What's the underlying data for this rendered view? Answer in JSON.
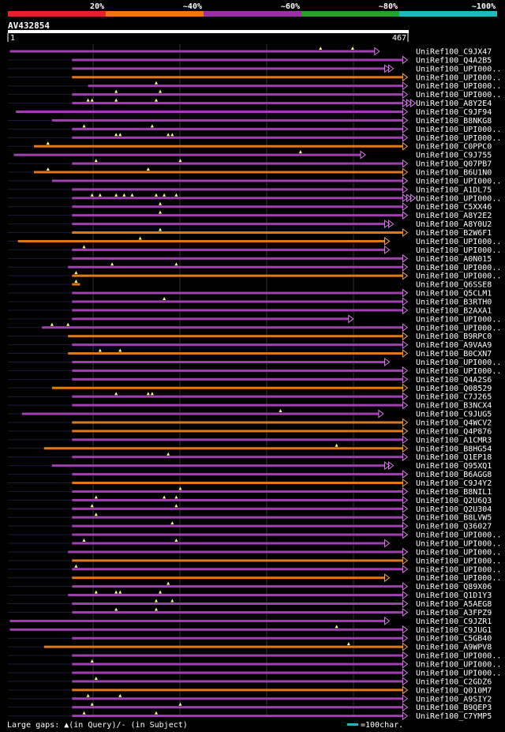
{
  "legend": {
    "labels": [
      "20%",
      "~40%",
      "~60%",
      "~80%",
      "~100%"
    ],
    "colors": [
      "#e8202a",
      "#e87818",
      "#9c2ea8",
      "#28a028",
      "#20b8c0"
    ]
  },
  "query": {
    "id": "AV432854",
    "start": "1",
    "end": "467"
  },
  "colors": {
    "purple": "#a040b0",
    "orange": "#e07818",
    "arrow_purple": "#d878e8",
    "arrow_orange": "#f0a050",
    "grid": "#303030",
    "text": "#ffffff"
  },
  "hits": [
    {
      "name": "UniRef100_C9JX47",
      "color": "purple",
      "start": 0.005,
      "end": 0.915,
      "arrow": 1,
      "gaps": [
        0.78,
        0.86
      ]
    },
    {
      "name": "UniRef100_Q4A2B5",
      "color": "purple",
      "start": 0.16,
      "end": 0.985,
      "arrow": 1,
      "gaps": []
    },
    {
      "name": "UniRef100_UPI000..",
      "color": "purple",
      "start": 0.16,
      "end": 0.94,
      "arrow": 2,
      "gaps": []
    },
    {
      "name": "UniRef100_UPI000..",
      "color": "orange",
      "start": 0.16,
      "end": 0.985,
      "arrow": 1,
      "gaps": []
    },
    {
      "name": "UniRef100_UPI000..",
      "color": "purple",
      "start": 0.2,
      "end": 0.985,
      "arrow": 1,
      "gaps": [
        0.37
      ]
    },
    {
      "name": "UniRef100_UPI000..",
      "color": "purple",
      "start": 0.16,
      "end": 0.985,
      "arrow": 1,
      "gaps": [
        0.27,
        0.38
      ]
    },
    {
      "name": "UniRef100_A8Y2E4",
      "color": "purple",
      "start": 0.16,
      "end": 0.985,
      "arrow": 3,
      "gaps": [
        0.2,
        0.21,
        0.27,
        0.37
      ]
    },
    {
      "name": "UniRef100_C9JF94",
      "color": "purple",
      "start": 0.02,
      "end": 0.985,
      "arrow": 1,
      "gaps": []
    },
    {
      "name": "UniRef100_B8NKG8",
      "color": "purple",
      "start": 0.11,
      "end": 0.985,
      "arrow": 1,
      "gaps": []
    },
    {
      "name": "UniRef100_UPI000..",
      "color": "purple",
      "start": 0.16,
      "end": 0.985,
      "arrow": 1,
      "gaps": [
        0.19,
        0.36
      ]
    },
    {
      "name": "UniRef100_UPI000..",
      "color": "purple",
      "start": 0.16,
      "end": 0.985,
      "arrow": 1,
      "gaps": [
        0.27,
        0.28,
        0.4,
        0.41
      ]
    },
    {
      "name": "UniRef100_C0PPC0",
      "color": "orange",
      "start": 0.065,
      "end": 0.985,
      "arrow": 1,
      "gaps": [
        0.1
      ]
    },
    {
      "name": "UniRef100_C9J755",
      "color": "purple",
      "start": 0.015,
      "end": 0.88,
      "arrow": 1,
      "gaps": [
        0.73
      ]
    },
    {
      "name": "UniRef100_Q07PB7",
      "color": "purple",
      "start": 0.16,
      "end": 0.985,
      "arrow": 1,
      "gaps": [
        0.22,
        0.43
      ]
    },
    {
      "name": "UniRef100_B6U1N0",
      "color": "orange",
      "start": 0.065,
      "end": 0.985,
      "arrow": 1,
      "gaps": [
        0.1,
        0.35
      ]
    },
    {
      "name": "UniRef100_UPI000..",
      "color": "purple",
      "start": 0.11,
      "end": 0.985,
      "arrow": 1,
      "gaps": []
    },
    {
      "name": "UniRef100_A1DL75",
      "color": "purple",
      "start": 0.16,
      "end": 0.985,
      "arrow": 1,
      "gaps": []
    },
    {
      "name": "UniRef100_UPI000..",
      "color": "purple",
      "start": 0.16,
      "end": 0.985,
      "arrow": 3,
      "gaps": [
        0.21,
        0.23,
        0.27,
        0.29,
        0.31,
        0.37,
        0.39,
        0.42
      ]
    },
    {
      "name": "UniRef100_C5XX46",
      "color": "purple",
      "start": 0.16,
      "end": 0.985,
      "arrow": 1,
      "gaps": [
        0.38
      ]
    },
    {
      "name": "UniRef100_A8Y2E2",
      "color": "purple",
      "start": 0.16,
      "end": 0.985,
      "arrow": 1,
      "gaps": [
        0.38
      ]
    },
    {
      "name": "UniRef100_A8Y0U2",
      "color": "purple",
      "start": 0.16,
      "end": 0.94,
      "arrow": 2,
      "gaps": []
    },
    {
      "name": "UniRef100_B2W6F1",
      "color": "orange",
      "start": 0.16,
      "end": 0.985,
      "arrow": 1,
      "gaps": [
        0.38
      ]
    },
    {
      "name": "UniRef100_UPI000..",
      "color": "orange",
      "start": 0.025,
      "end": 0.94,
      "arrow": 1,
      "gaps": [
        0.33
      ]
    },
    {
      "name": "UniRef100_UPI000..",
      "color": "purple",
      "start": 0.16,
      "end": 0.94,
      "arrow": 1,
      "gaps": [
        0.19
      ]
    },
    {
      "name": "UniRef100_A0N015",
      "color": "purple",
      "start": 0.16,
      "end": 0.985,
      "arrow": 1,
      "gaps": []
    },
    {
      "name": "UniRef100_UPI000..",
      "color": "purple",
      "start": 0.15,
      "end": 0.985,
      "arrow": 1,
      "gaps": [
        0.26,
        0.42
      ]
    },
    {
      "name": "UniRef100_UPI000..",
      "color": "orange",
      "start": 0.16,
      "end": 0.985,
      "arrow": 1,
      "gaps": [
        0.17
      ]
    },
    {
      "name": "UniRef100_Q6SSE8",
      "color": "orange",
      "start": 0.16,
      "end": 0.18,
      "arrow": 0,
      "gaps": [
        0.17
      ]
    },
    {
      "name": "UniRef100_Q5CLM1",
      "color": "purple",
      "start": 0.16,
      "end": 0.985,
      "arrow": 1,
      "gaps": []
    },
    {
      "name": "UniRef100_B3RTH0",
      "color": "purple",
      "start": 0.16,
      "end": 0.985,
      "arrow": 1,
      "gaps": [
        0.39
      ]
    },
    {
      "name": "UniRef100_B2AXA1",
      "color": "purple",
      "start": 0.16,
      "end": 0.985,
      "arrow": 1,
      "gaps": []
    },
    {
      "name": "UniRef100_UPI000..",
      "color": "purple",
      "start": 0.16,
      "end": 0.85,
      "arrow": 1,
      "gaps": []
    },
    {
      "name": "UniRef100_UPI000..",
      "color": "purple",
      "start": 0.085,
      "end": 0.985,
      "arrow": 1,
      "gaps": [
        0.11,
        0.15
      ]
    },
    {
      "name": "UniRef100_B9RPC0",
      "color": "orange",
      "start": 0.15,
      "end": 0.985,
      "arrow": 1,
      "gaps": []
    },
    {
      "name": "UniRef100_A9VAA9",
      "color": "purple",
      "start": 0.16,
      "end": 0.985,
      "arrow": 1,
      "gaps": []
    },
    {
      "name": "UniRef100_B0CXN7",
      "color": "orange",
      "start": 0.15,
      "end": 0.985,
      "arrow": 1,
      "gaps": [
        0.23,
        0.28
      ]
    },
    {
      "name": "UniRef100_UPI000..",
      "color": "purple",
      "start": 0.16,
      "end": 0.94,
      "arrow": 1,
      "gaps": []
    },
    {
      "name": "UniRef100_UPI000..",
      "color": "purple",
      "start": 0.16,
      "end": 0.985,
      "arrow": 1,
      "gaps": []
    },
    {
      "name": "UniRef100_Q4A2S6",
      "color": "purple",
      "start": 0.16,
      "end": 0.985,
      "arrow": 1,
      "gaps": []
    },
    {
      "name": "UniRef100_Q08529",
      "color": "orange",
      "start": 0.11,
      "end": 0.985,
      "arrow": 1,
      "gaps": []
    },
    {
      "name": "UniRef100_C7J265",
      "color": "purple",
      "start": 0.16,
      "end": 0.985,
      "arrow": 1,
      "gaps": [
        0.27,
        0.35,
        0.36
      ]
    },
    {
      "name": "UniRef100_B3NCX4",
      "color": "purple",
      "start": 0.16,
      "end": 0.985,
      "arrow": 1,
      "gaps": []
    },
    {
      "name": "UniRef100_C9JUG5",
      "color": "purple",
      "start": 0.035,
      "end": 0.925,
      "arrow": 1,
      "gaps": [
        0.68
      ]
    },
    {
      "name": "UniRef100_Q4WCV2",
      "color": "orange",
      "start": 0.16,
      "end": 0.985,
      "arrow": 1,
      "gaps": []
    },
    {
      "name": "UniRef100_Q4P876",
      "color": "orange",
      "start": 0.16,
      "end": 0.985,
      "arrow": 1,
      "gaps": []
    },
    {
      "name": "UniRef100_A1CMR3",
      "color": "purple",
      "start": 0.16,
      "end": 0.985,
      "arrow": 1,
      "gaps": []
    },
    {
      "name": "UniRef100_B8HG54",
      "color": "orange",
      "start": 0.09,
      "end": 0.985,
      "arrow": 1,
      "gaps": [
        0.82
      ]
    },
    {
      "name": "UniRef100_Q1EP18",
      "color": "purple",
      "start": 0.16,
      "end": 0.985,
      "arrow": 1,
      "gaps": [
        0.4
      ]
    },
    {
      "name": "UniRef100_Q95XQ1",
      "color": "purple",
      "start": 0.11,
      "end": 0.94,
      "arrow": 2,
      "gaps": []
    },
    {
      "name": "UniRef100_B6AGG8",
      "color": "purple",
      "start": 0.16,
      "end": 0.985,
      "arrow": 1,
      "gaps": []
    },
    {
      "name": "UniRef100_C9J4Y2",
      "color": "orange",
      "start": 0.16,
      "end": 0.985,
      "arrow": 1,
      "gaps": []
    },
    {
      "name": "UniRef100_B8NIL1",
      "color": "purple",
      "start": 0.16,
      "end": 0.985,
      "arrow": 1,
      "gaps": [
        0.43
      ]
    },
    {
      "name": "UniRef100_Q2U6Q3",
      "color": "purple",
      "start": 0.16,
      "end": 0.985,
      "arrow": 1,
      "gaps": [
        0.22,
        0.39,
        0.42
      ]
    },
    {
      "name": "UniRef100_Q2U304",
      "color": "purple",
      "start": 0.16,
      "end": 0.985,
      "arrow": 1,
      "gaps": [
        0.21,
        0.42
      ]
    },
    {
      "name": "UniRef100_B8LVW5",
      "color": "purple",
      "start": 0.16,
      "end": 0.985,
      "arrow": 1,
      "gaps": [
        0.22
      ]
    },
    {
      "name": "UniRef100_Q36027",
      "color": "purple",
      "start": 0.16,
      "end": 0.985,
      "arrow": 1,
      "gaps": [
        0.41
      ]
    },
    {
      "name": "UniRef100_UPI000..",
      "color": "purple",
      "start": 0.16,
      "end": 0.985,
      "arrow": 1,
      "gaps": []
    },
    {
      "name": "UniRef100_UPI000..",
      "color": "purple",
      "start": 0.16,
      "end": 0.94,
      "arrow": 1,
      "gaps": [
        0.19,
        0.42
      ]
    },
    {
      "name": "UniRef100_UPI000..",
      "color": "purple",
      "start": 0.15,
      "end": 0.985,
      "arrow": 1,
      "gaps": []
    },
    {
      "name": "UniRef100_UPI000..",
      "color": "orange",
      "start": 0.16,
      "end": 0.985,
      "arrow": 1,
      "gaps": []
    },
    {
      "name": "UniRef100_UPI000..",
      "color": "purple",
      "start": 0.16,
      "end": 0.985,
      "arrow": 1,
      "gaps": [
        0.17
      ]
    },
    {
      "name": "UniRef100_UPI000..",
      "color": "orange",
      "start": 0.16,
      "end": 0.94,
      "arrow": 1,
      "gaps": []
    },
    {
      "name": "UniRef100_Q89X06",
      "color": "purple",
      "start": 0.16,
      "end": 0.985,
      "arrow": 1,
      "gaps": [
        0.4
      ]
    },
    {
      "name": "UniRef100_Q1D1Y3",
      "color": "purple",
      "start": 0.15,
      "end": 0.985,
      "arrow": 1,
      "gaps": [
        0.22,
        0.27,
        0.28,
        0.38
      ]
    },
    {
      "name": "UniRef100_A5AEG8",
      "color": "purple",
      "start": 0.16,
      "end": 0.985,
      "arrow": 1,
      "gaps": [
        0.37,
        0.41
      ]
    },
    {
      "name": "UniRef100_A3FPZ9",
      "color": "purple",
      "start": 0.16,
      "end": 0.985,
      "arrow": 1,
      "gaps": [
        0.27,
        0.37
      ]
    },
    {
      "name": "UniRef100_C9JZR1",
      "color": "purple",
      "start": 0.005,
      "end": 0.94,
      "arrow": 1,
      "gaps": []
    },
    {
      "name": "UniRef100_C9JUG1",
      "color": "purple",
      "start": 0.005,
      "end": 0.985,
      "arrow": 1,
      "gaps": [
        0.82
      ]
    },
    {
      "name": "UniRef100_C5GB40",
      "color": "purple",
      "start": 0.16,
      "end": 0.985,
      "arrow": 1,
      "gaps": []
    },
    {
      "name": "UniRef100_A9WPV8",
      "color": "orange",
      "start": 0.09,
      "end": 0.985,
      "arrow": 1,
      "gaps": [
        0.85
      ]
    },
    {
      "name": "UniRef100_UPI000..",
      "color": "purple",
      "start": 0.16,
      "end": 0.985,
      "arrow": 1,
      "gaps": []
    },
    {
      "name": "UniRef100_UPI000..",
      "color": "purple",
      "start": 0.16,
      "end": 0.985,
      "arrow": 1,
      "gaps": [
        0.21
      ]
    },
    {
      "name": "UniRef100_UPI000..",
      "color": "purple",
      "start": 0.16,
      "end": 0.985,
      "arrow": 1,
      "gaps": []
    },
    {
      "name": "UniRef100_C2GDZ6",
      "color": "purple",
      "start": 0.16,
      "end": 0.985,
      "arrow": 1,
      "gaps": [
        0.22
      ]
    },
    {
      "name": "UniRef100_Q010M7",
      "color": "orange",
      "start": 0.16,
      "end": 0.985,
      "arrow": 1,
      "gaps": []
    },
    {
      "name": "UniRef100_A9SIY2",
      "color": "purple",
      "start": 0.16,
      "end": 0.985,
      "arrow": 1,
      "gaps": [
        0.2,
        0.28
      ]
    },
    {
      "name": "UniRef100_B9QEP3",
      "color": "purple",
      "start": 0.16,
      "end": 0.985,
      "arrow": 1,
      "gaps": [
        0.21,
        0.43
      ]
    },
    {
      "name": "UniRef100_C7YMP5",
      "color": "purple",
      "start": 0.16,
      "end": 0.985,
      "arrow": 1,
      "gaps": [
        0.19,
        0.37
      ]
    }
  ],
  "footer": {
    "gaps_label": "Large gaps: ▲(in Query)/- (in Subject)",
    "scale_label": "=100char."
  }
}
